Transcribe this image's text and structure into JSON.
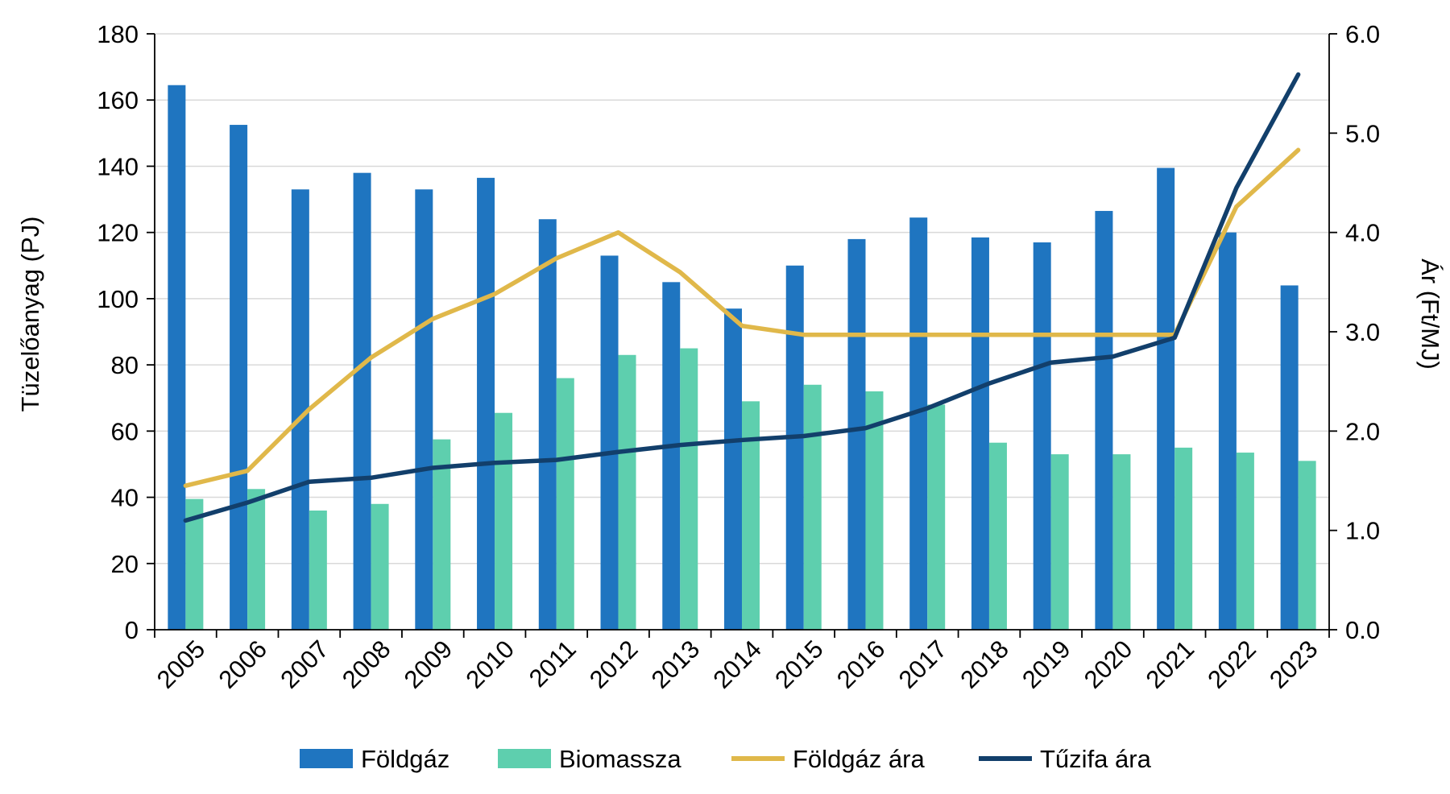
{
  "chart_data": {
    "type": "bar",
    "categories": [
      "2005",
      "2006",
      "2007",
      "2008",
      "2009",
      "2010",
      "2011",
      "2012",
      "2013",
      "2014",
      "2015",
      "2016",
      "2017",
      "2018",
      "2019",
      "2020",
      "2021",
      "2022",
      "2023"
    ],
    "series": [
      {
        "name": "Földgáz",
        "kind": "bar",
        "axis": "left",
        "color": "#1f75c0",
        "values": [
          164.5,
          152.5,
          133,
          138,
          133,
          136.5,
          124,
          113,
          105,
          97,
          110,
          118,
          124.5,
          118.5,
          117,
          126.5,
          139.5,
          120,
          104
        ]
      },
      {
        "name": "Biomassza",
        "kind": "bar",
        "axis": "left",
        "color": "#5ecfae",
        "values": [
          39.5,
          42.5,
          36,
          38,
          57.5,
          65.5,
          76,
          83,
          85,
          69,
          74,
          72,
          68,
          56.5,
          53,
          53,
          55,
          53.5,
          51
        ]
      },
      {
        "name": "Földgáz ára",
        "kind": "line",
        "axis": "right",
        "color": "#e0b84a",
        "values": [
          1.45,
          1.6,
          2.22,
          2.74,
          3.13,
          3.38,
          3.74,
          4.0,
          3.6,
          3.06,
          2.97,
          2.97,
          2.97,
          2.97,
          2.97,
          2.97,
          2.97,
          4.26,
          4.83
        ]
      },
      {
        "name": "Tűzifa ára",
        "kind": "line",
        "axis": "right",
        "color": "#123f6b",
        "values": [
          1.1,
          1.28,
          1.49,
          1.53,
          1.63,
          1.68,
          1.71,
          1.79,
          1.86,
          1.91,
          1.95,
          2.03,
          2.23,
          2.48,
          2.69,
          2.75,
          2.94,
          4.45,
          5.59
        ]
      }
    ],
    "ylabel": "Tüzelőanyag (PJ)",
    "ylim": [
      0,
      180
    ],
    "yticks": [
      "0",
      "20",
      "40",
      "60",
      "80",
      "100",
      "120",
      "140",
      "160",
      "180"
    ],
    "y2label": "Ár (Ft/MJ)",
    "y2lim": [
      0,
      6
    ],
    "y2ticks": [
      "0.0",
      "1.0",
      "2.0",
      "3.0",
      "4.0",
      "5.0",
      "6.0"
    ],
    "grid": true,
    "legend_position": "bottom"
  }
}
